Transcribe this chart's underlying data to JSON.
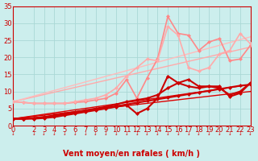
{
  "title": "",
  "xlabel": "Vent moyen/en rafales ( km/h )",
  "ylabel": "",
  "xlim": [
    0,
    23
  ],
  "ylim": [
    0,
    35
  ],
  "xticks": [
    0,
    2,
    3,
    4,
    5,
    6,
    7,
    8,
    9,
    10,
    11,
    12,
    13,
    14,
    15,
    16,
    17,
    18,
    19,
    20,
    21,
    22,
    23
  ],
  "yticks": [
    0,
    5,
    10,
    15,
    20,
    25,
    30,
    35
  ],
  "bg_color": "#cceeed",
  "grid_color": "#aad8d6",
  "lines": [
    {
      "note": "straight trend line light pink 1 - from 7 to ~23",
      "x": [
        0,
        23
      ],
      "y": [
        7.0,
        23.0
      ],
      "color": "#ffaaaa",
      "lw": 1.0,
      "marker": null,
      "ms": 0,
      "zorder": 2,
      "linestyle": "-"
    },
    {
      "note": "straight trend line light pink 2 - from 7 to ~26",
      "x": [
        0,
        23
      ],
      "y": [
        7.0,
        26.0
      ],
      "color": "#ffbbbb",
      "lw": 1.0,
      "marker": null,
      "ms": 0,
      "zorder": 2,
      "linestyle": "-"
    },
    {
      "note": "straight trend line dark red 1 - from ~2 to ~12",
      "x": [
        0,
        23
      ],
      "y": [
        2.0,
        12.0
      ],
      "color": "#dd0000",
      "lw": 1.0,
      "marker": null,
      "ms": 0,
      "zorder": 2,
      "linestyle": "-"
    },
    {
      "note": "straight trend line dark red 2 - from ~2 to ~10",
      "x": [
        0,
        23
      ],
      "y": [
        2.0,
        10.0
      ],
      "color": "#dd0000",
      "lw": 1.0,
      "marker": null,
      "ms": 0,
      "zorder": 2,
      "linestyle": "-"
    },
    {
      "note": "light pink spiking line 1 - peaks at x=15 around 32",
      "x": [
        0,
        1,
        2,
        3,
        4,
        5,
        6,
        7,
        8,
        9,
        10,
        11,
        12,
        13,
        14,
        15,
        16,
        17,
        18,
        19,
        20,
        21,
        22,
        23
      ],
      "y": [
        7.0,
        6.8,
        6.5,
        6.5,
        6.5,
        6.5,
        6.8,
        7.0,
        7.5,
        8.0,
        9.5,
        13.5,
        8.0,
        14.0,
        19.5,
        32.0,
        27.0,
        26.5,
        22.0,
        24.5,
        25.5,
        19.0,
        19.5,
        23.5
      ],
      "color": "#ff8888",
      "lw": 1.2,
      "marker": "D",
      "ms": 2.0,
      "zorder": 3,
      "linestyle": "-"
    },
    {
      "note": "light pink spiking line 2 - peaks at x=14-15 around 27",
      "x": [
        0,
        1,
        2,
        3,
        4,
        5,
        6,
        7,
        8,
        9,
        10,
        11,
        12,
        13,
        14,
        15,
        16,
        17,
        18,
        19,
        20,
        21,
        22,
        23
      ],
      "y": [
        7.0,
        6.8,
        6.5,
        6.5,
        6.5,
        6.5,
        7.0,
        7.5,
        8.0,
        9.0,
        11.0,
        14.5,
        17.0,
        19.5,
        19.0,
        29.0,
        26.5,
        17.0,
        16.0,
        17.0,
        21.0,
        22.0,
        27.0,
        24.0
      ],
      "color": "#ffaaaa",
      "lw": 1.2,
      "marker": "D",
      "ms": 2.0,
      "zorder": 3,
      "linestyle": "-"
    },
    {
      "note": "dark red line 1 - moderate with spike at x=15",
      "x": [
        0,
        1,
        2,
        3,
        4,
        5,
        6,
        7,
        8,
        9,
        10,
        11,
        12,
        13,
        14,
        15,
        16,
        17,
        18,
        19,
        20,
        21,
        22,
        23
      ],
      "y": [
        2.0,
        2.0,
        2.0,
        2.2,
        2.5,
        3.0,
        3.5,
        4.0,
        4.5,
        5.0,
        5.5,
        6.0,
        3.5,
        5.0,
        8.0,
        14.5,
        12.5,
        13.5,
        11.5,
        11.5,
        11.5,
        8.5,
        9.5,
        12.5
      ],
      "color": "#cc0000",
      "lw": 1.5,
      "marker": "D",
      "ms": 2.0,
      "zorder": 4,
      "linestyle": "-"
    },
    {
      "note": "dark red line 2 - fairly smooth rising",
      "x": [
        0,
        1,
        2,
        3,
        4,
        5,
        6,
        7,
        8,
        9,
        10,
        11,
        12,
        13,
        14,
        15,
        16,
        17,
        18,
        19,
        20,
        21,
        22,
        23
      ],
      "y": [
        2.0,
        2.0,
        2.2,
        2.5,
        3.0,
        3.5,
        4.0,
        4.5,
        5.0,
        5.5,
        6.2,
        7.0,
        7.5,
        8.0,
        9.0,
        11.0,
        12.5,
        11.5,
        11.0,
        11.5,
        11.0,
        9.0,
        10.0,
        12.5
      ],
      "color": "#cc0000",
      "lw": 1.5,
      "marker": "D",
      "ms": 2.0,
      "zorder": 4,
      "linestyle": "-"
    },
    {
      "note": "dark red line 3 - smoothest rising line",
      "x": [
        0,
        1,
        2,
        3,
        4,
        5,
        6,
        7,
        8,
        9,
        10,
        11,
        12,
        13,
        14,
        15,
        16,
        17,
        18,
        19,
        20,
        21,
        22,
        23
      ],
      "y": [
        2.0,
        2.0,
        2.2,
        2.5,
        2.8,
        3.2,
        3.7,
        4.2,
        4.7,
        5.2,
        5.7,
        6.2,
        6.7,
        7.2,
        7.7,
        8.2,
        8.7,
        9.2,
        9.7,
        10.2,
        10.7,
        11.2,
        11.7,
        12.0
      ],
      "color": "#cc0000",
      "lw": 1.5,
      "marker": "D",
      "ms": 2.0,
      "zorder": 4,
      "linestyle": "-"
    }
  ],
  "tick_label_color": "#cc0000",
  "tick_fontsize": 6,
  "xlabel_fontsize": 7,
  "xlabel_color": "#cc0000"
}
